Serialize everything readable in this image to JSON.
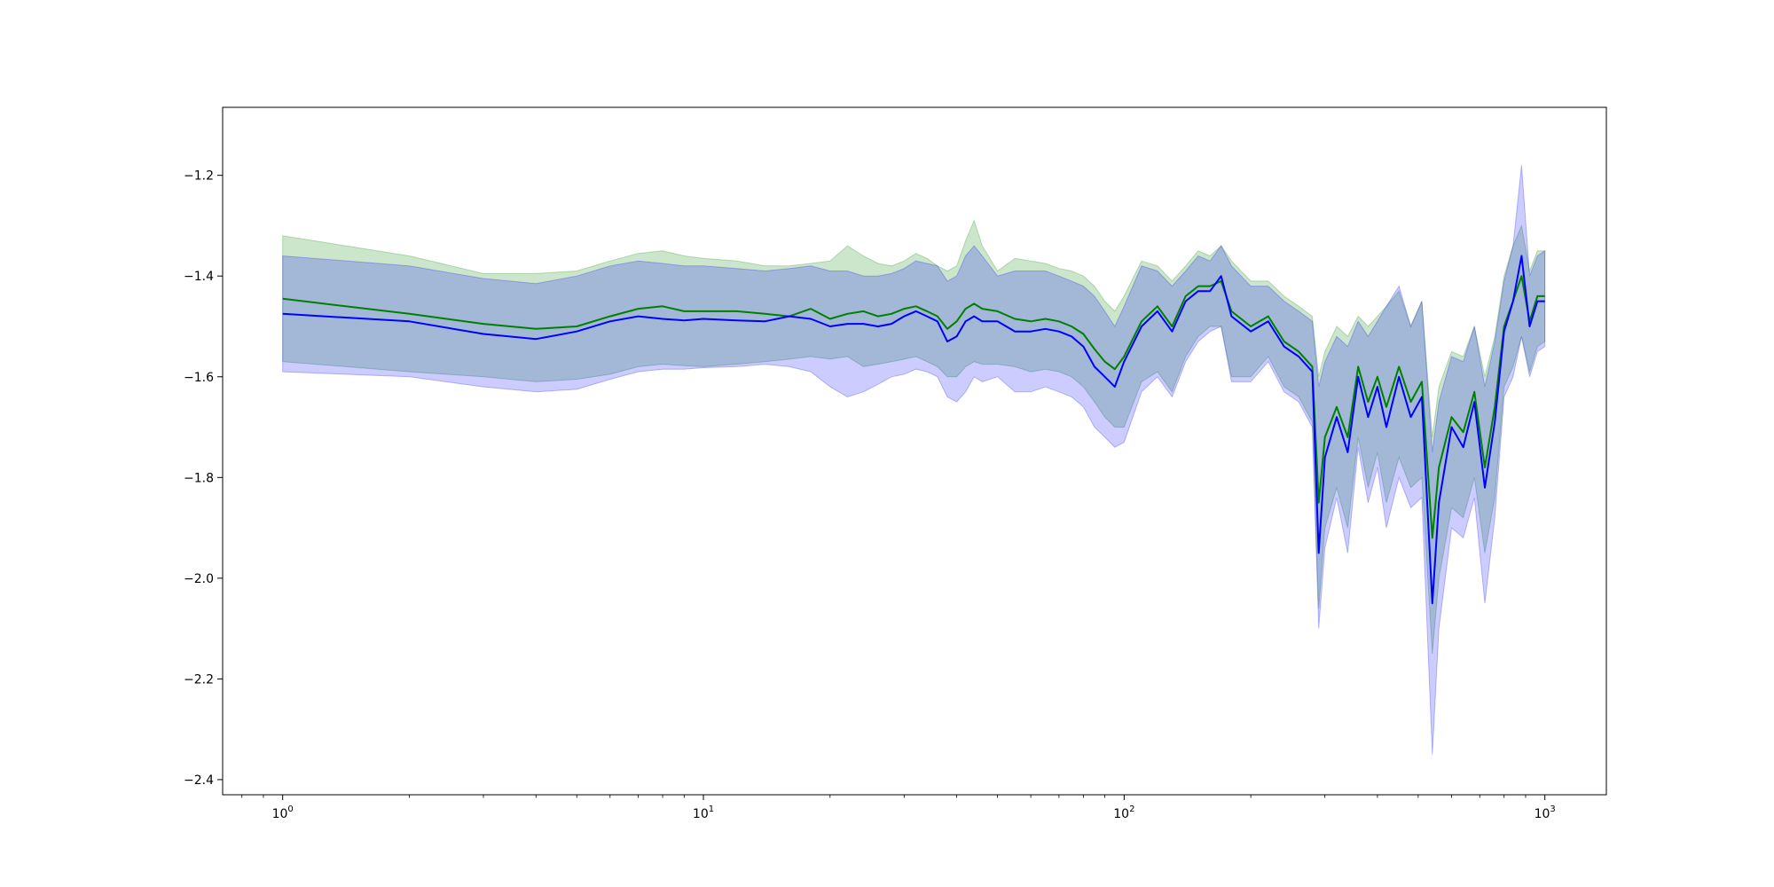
{
  "chart_data": {
    "type": "line",
    "title": "",
    "xlabel": "",
    "ylabel": "",
    "xscale": "log",
    "xlim": [
      0.72,
      1400
    ],
    "ylim": [
      -2.43,
      -1.065
    ],
    "grid": false,
    "legend": "none",
    "y_ticks": [
      {
        "value": -1.2,
        "label": "−1.2"
      },
      {
        "value": -1.4,
        "label": "−1.4"
      },
      {
        "value": -1.6,
        "label": "−1.6"
      },
      {
        "value": -1.8,
        "label": "−1.8"
      },
      {
        "value": -2.0,
        "label": "−2.0"
      },
      {
        "value": -2.2,
        "label": "−2.2"
      },
      {
        "value": -2.4,
        "label": "−2.4"
      }
    ],
    "x_ticks": [
      {
        "value": 1,
        "base": "10",
        "exp": "0"
      },
      {
        "value": 10,
        "base": "10",
        "exp": "1"
      },
      {
        "value": 100,
        "base": "10",
        "exp": "2"
      },
      {
        "value": 1000,
        "base": "10",
        "exp": "3"
      }
    ],
    "series": [
      {
        "color": "#008000",
        "band_color": "#008000",
        "band_opacity": 0.2,
        "points": [
          [
            1,
            -1.445,
            -1.32,
            -1.57
          ],
          [
            2,
            -1.475,
            -1.36,
            -1.59
          ],
          [
            3,
            -1.495,
            -1.395,
            -1.6
          ],
          [
            4,
            -1.505,
            -1.395,
            -1.61
          ],
          [
            5,
            -1.5,
            -1.39,
            -1.605
          ],
          [
            6,
            -1.48,
            -1.37,
            -1.595
          ],
          [
            7,
            -1.465,
            -1.355,
            -1.58
          ],
          [
            8,
            -1.46,
            -1.35,
            -1.575
          ],
          [
            9,
            -1.47,
            -1.36,
            -1.578
          ],
          [
            10,
            -1.47,
            -1.365,
            -1.58
          ],
          [
            12,
            -1.47,
            -1.37,
            -1.575
          ],
          [
            14,
            -1.475,
            -1.38,
            -1.57
          ],
          [
            16,
            -1.48,
            -1.38,
            -1.565
          ],
          [
            18,
            -1.465,
            -1.375,
            -1.56
          ],
          [
            20,
            -1.485,
            -1.37,
            -1.565
          ],
          [
            22,
            -1.475,
            -1.34,
            -1.56
          ],
          [
            24,
            -1.47,
            -1.36,
            -1.58
          ],
          [
            26,
            -1.48,
            -1.375,
            -1.575
          ],
          [
            28,
            -1.475,
            -1.38,
            -1.57
          ],
          [
            30,
            -1.465,
            -1.37,
            -1.565
          ],
          [
            32,
            -1.46,
            -1.355,
            -1.56
          ],
          [
            34,
            -1.47,
            -1.365,
            -1.57
          ],
          [
            36,
            -1.48,
            -1.38,
            -1.58
          ],
          [
            38,
            -1.505,
            -1.39,
            -1.6
          ],
          [
            40,
            -1.49,
            -1.38,
            -1.6
          ],
          [
            42,
            -1.465,
            -1.33,
            -1.58
          ],
          [
            44,
            -1.455,
            -1.29,
            -1.57
          ],
          [
            46,
            -1.465,
            -1.34,
            -1.575
          ],
          [
            50,
            -1.47,
            -1.39,
            -1.575
          ],
          [
            55,
            -1.485,
            -1.365,
            -1.58
          ],
          [
            60,
            -1.49,
            -1.37,
            -1.59
          ],
          [
            65,
            -1.485,
            -1.375,
            -1.585
          ],
          [
            70,
            -1.49,
            -1.385,
            -1.59
          ],
          [
            75,
            -1.5,
            -1.39,
            -1.6
          ],
          [
            80,
            -1.515,
            -1.4,
            -1.62
          ],
          [
            85,
            -1.545,
            -1.42,
            -1.65
          ],
          [
            90,
            -1.57,
            -1.45,
            -1.68
          ],
          [
            95,
            -1.585,
            -1.47,
            -1.7
          ],
          [
            100,
            -1.56,
            -1.44,
            -1.7
          ],
          [
            110,
            -1.49,
            -1.37,
            -1.61
          ],
          [
            120,
            -1.46,
            -1.38,
            -1.59
          ],
          [
            130,
            -1.5,
            -1.41,
            -1.63
          ],
          [
            140,
            -1.44,
            -1.38,
            -1.56
          ],
          [
            150,
            -1.42,
            -1.35,
            -1.52
          ],
          [
            160,
            -1.42,
            -1.36,
            -1.5
          ],
          [
            170,
            -1.41,
            -1.34,
            -1.5
          ],
          [
            180,
            -1.47,
            -1.37,
            -1.6
          ],
          [
            200,
            -1.5,
            -1.41,
            -1.6
          ],
          [
            220,
            -1.48,
            -1.41,
            -1.56
          ],
          [
            240,
            -1.53,
            -1.44,
            -1.62
          ],
          [
            260,
            -1.55,
            -1.46,
            -1.64
          ],
          [
            280,
            -1.58,
            -1.48,
            -1.69
          ],
          [
            290,
            -1.85,
            -1.6,
            -2.06
          ],
          [
            300,
            -1.72,
            -1.55,
            -1.9
          ],
          [
            320,
            -1.66,
            -1.5,
            -1.82
          ],
          [
            340,
            -1.72,
            -1.52,
            -1.9
          ],
          [
            360,
            -1.58,
            -1.48,
            -1.72
          ],
          [
            380,
            -1.65,
            -1.5,
            -1.82
          ],
          [
            400,
            -1.6,
            -1.48,
            -1.75
          ],
          [
            420,
            -1.66,
            -1.46,
            -1.85
          ],
          [
            450,
            -1.58,
            -1.43,
            -1.76
          ],
          [
            480,
            -1.65,
            -1.5,
            -1.82
          ],
          [
            510,
            -1.61,
            -1.45,
            -1.8
          ],
          [
            540,
            -1.92,
            -1.72,
            -2.15
          ],
          [
            560,
            -1.78,
            -1.62,
            -2.0
          ],
          [
            600,
            -1.68,
            -1.55,
            -1.86
          ],
          [
            640,
            -1.71,
            -1.56,
            -1.88
          ],
          [
            680,
            -1.63,
            -1.5,
            -1.8
          ],
          [
            720,
            -1.78,
            -1.6,
            -1.95
          ],
          [
            760,
            -1.66,
            -1.52,
            -1.84
          ],
          [
            800,
            -1.5,
            -1.4,
            -1.62
          ],
          [
            840,
            -1.45,
            -1.34,
            -1.58
          ],
          [
            880,
            -1.4,
            -1.3,
            -1.52
          ],
          [
            920,
            -1.49,
            -1.39,
            -1.59
          ],
          [
            960,
            -1.44,
            -1.35,
            -1.54
          ],
          [
            1000,
            -1.44,
            -1.35,
            -1.53
          ]
        ]
      },
      {
        "color": "#0000ff",
        "band_color": "#0000ff",
        "band_opacity": 0.2,
        "points": [
          [
            1,
            -1.475,
            -1.36,
            -1.59
          ],
          [
            2,
            -1.49,
            -1.38,
            -1.6
          ],
          [
            3,
            -1.515,
            -1.405,
            -1.62
          ],
          [
            4,
            -1.525,
            -1.415,
            -1.63
          ],
          [
            5,
            -1.51,
            -1.4,
            -1.625
          ],
          [
            6,
            -1.49,
            -1.38,
            -1.605
          ],
          [
            7,
            -1.48,
            -1.37,
            -1.59
          ],
          [
            8,
            -1.485,
            -1.375,
            -1.585
          ],
          [
            9,
            -1.488,
            -1.38,
            -1.585
          ],
          [
            10,
            -1.485,
            -1.38,
            -1.582
          ],
          [
            12,
            -1.488,
            -1.385,
            -1.58
          ],
          [
            14,
            -1.49,
            -1.39,
            -1.575
          ],
          [
            16,
            -1.48,
            -1.385,
            -1.58
          ],
          [
            18,
            -1.485,
            -1.38,
            -1.59
          ],
          [
            20,
            -1.5,
            -1.39,
            -1.62
          ],
          [
            22,
            -1.495,
            -1.39,
            -1.64
          ],
          [
            24,
            -1.495,
            -1.4,
            -1.63
          ],
          [
            26,
            -1.5,
            -1.4,
            -1.615
          ],
          [
            28,
            -1.495,
            -1.395,
            -1.6
          ],
          [
            30,
            -1.48,
            -1.385,
            -1.595
          ],
          [
            32,
            -1.47,
            -1.37,
            -1.585
          ],
          [
            34,
            -1.48,
            -1.375,
            -1.59
          ],
          [
            36,
            -1.49,
            -1.38,
            -1.6
          ],
          [
            38,
            -1.53,
            -1.41,
            -1.64
          ],
          [
            40,
            -1.52,
            -1.4,
            -1.65
          ],
          [
            42,
            -1.49,
            -1.36,
            -1.63
          ],
          [
            44,
            -1.48,
            -1.34,
            -1.6
          ],
          [
            46,
            -1.49,
            -1.36,
            -1.61
          ],
          [
            50,
            -1.49,
            -1.4,
            -1.6
          ],
          [
            55,
            -1.51,
            -1.39,
            -1.63
          ],
          [
            60,
            -1.51,
            -1.39,
            -1.63
          ],
          [
            65,
            -1.505,
            -1.39,
            -1.62
          ],
          [
            70,
            -1.51,
            -1.4,
            -1.63
          ],
          [
            75,
            -1.52,
            -1.41,
            -1.64
          ],
          [
            80,
            -1.54,
            -1.42,
            -1.66
          ],
          [
            85,
            -1.58,
            -1.44,
            -1.7
          ],
          [
            90,
            -1.6,
            -1.47,
            -1.72
          ],
          [
            95,
            -1.62,
            -1.5,
            -1.74
          ],
          [
            100,
            -1.57,
            -1.46,
            -1.73
          ],
          [
            110,
            -1.5,
            -1.38,
            -1.63
          ],
          [
            120,
            -1.47,
            -1.39,
            -1.6
          ],
          [
            130,
            -1.51,
            -1.42,
            -1.64
          ],
          [
            140,
            -1.45,
            -1.39,
            -1.57
          ],
          [
            150,
            -1.43,
            -1.36,
            -1.53
          ],
          [
            160,
            -1.43,
            -1.37,
            -1.51
          ],
          [
            170,
            -1.4,
            -1.34,
            -1.5
          ],
          [
            180,
            -1.48,
            -1.38,
            -1.61
          ],
          [
            200,
            -1.51,
            -1.42,
            -1.61
          ],
          [
            220,
            -1.49,
            -1.42,
            -1.57
          ],
          [
            240,
            -1.54,
            -1.45,
            -1.63
          ],
          [
            260,
            -1.56,
            -1.47,
            -1.65
          ],
          [
            280,
            -1.59,
            -1.49,
            -1.7
          ],
          [
            290,
            -1.95,
            -1.62,
            -2.1
          ],
          [
            300,
            -1.76,
            -1.57,
            -1.94
          ],
          [
            320,
            -1.68,
            -1.52,
            -1.84
          ],
          [
            340,
            -1.75,
            -1.54,
            -1.95
          ],
          [
            360,
            -1.6,
            -1.49,
            -1.74
          ],
          [
            380,
            -1.68,
            -1.52,
            -1.85
          ],
          [
            400,
            -1.62,
            -1.49,
            -1.78
          ],
          [
            420,
            -1.7,
            -1.46,
            -1.9
          ],
          [
            450,
            -1.6,
            -1.42,
            -1.8
          ],
          [
            480,
            -1.68,
            -1.5,
            -1.86
          ],
          [
            510,
            -1.64,
            -1.45,
            -1.84
          ],
          [
            540,
            -2.05,
            -1.75,
            -2.35
          ],
          [
            560,
            -1.85,
            -1.65,
            -2.1
          ],
          [
            600,
            -1.7,
            -1.56,
            -1.9
          ],
          [
            640,
            -1.74,
            -1.57,
            -1.92
          ],
          [
            680,
            -1.65,
            -1.5,
            -1.84
          ],
          [
            720,
            -1.82,
            -1.62,
            -2.05
          ],
          [
            760,
            -1.69,
            -1.53,
            -1.88
          ],
          [
            800,
            -1.51,
            -1.41,
            -1.64
          ],
          [
            840,
            -1.45,
            -1.34,
            -1.6
          ],
          [
            880,
            -1.36,
            -1.18,
            -1.52
          ],
          [
            920,
            -1.5,
            -1.4,
            -1.6
          ],
          [
            960,
            -1.45,
            -1.36,
            -1.55
          ],
          [
            1000,
            -1.45,
            -1.35,
            -1.54
          ]
        ]
      }
    ]
  }
}
